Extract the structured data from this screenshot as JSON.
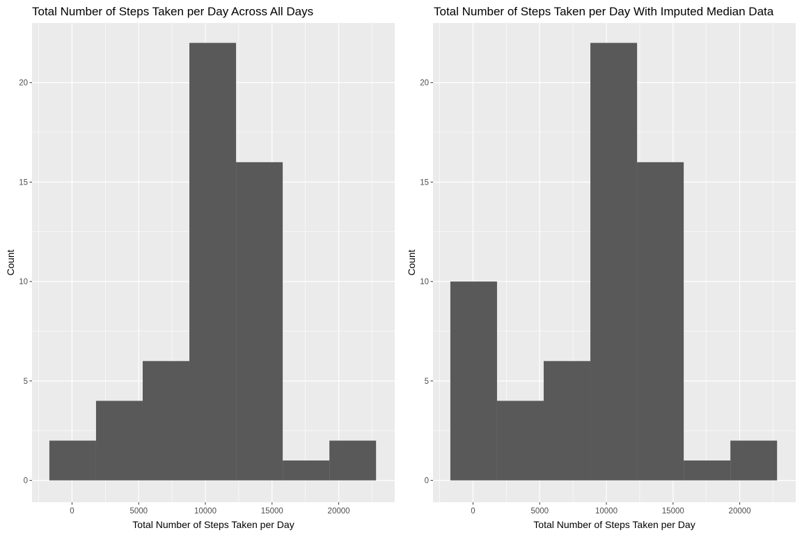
{
  "chart_data": [
    {
      "type": "bar",
      "title": "Total Number of Steps Taken per Day Across All Days",
      "xlabel": "Total Number of Steps Taken per Day",
      "ylabel": "Count",
      "xlim": [
        -3000,
        24200
      ],
      "ylim": [
        -1.1,
        23
      ],
      "x_ticks": [
        0,
        5000,
        10000,
        15000,
        20000
      ],
      "x_tick_labels": [
        "0",
        "5000",
        "10000",
        "15000",
        "20000"
      ],
      "y_ticks": [
        0,
        5,
        10,
        15,
        20
      ],
      "y_tick_labels": [
        "0",
        "5",
        "10",
        "15",
        "20"
      ],
      "bins": [
        {
          "x0": -1700,
          "x1": 1800,
          "count": 2
        },
        {
          "x0": 1800,
          "x1": 5300,
          "count": 4
        },
        {
          "x0": 5300,
          "x1": 8800,
          "count": 6
        },
        {
          "x0": 8800,
          "x1": 12300,
          "count": 22
        },
        {
          "x0": 12300,
          "x1": 15800,
          "count": 16
        },
        {
          "x0": 15800,
          "x1": 19300,
          "count": 1
        },
        {
          "x0": 19300,
          "x1": 22800,
          "count": 2
        }
      ],
      "grid": true,
      "bar_color": "#595959",
      "panel_color": "#ebebeb",
      "grid_color": "#ffffff"
    },
    {
      "type": "bar",
      "title": "Total Number of Steps Taken per Day With Imputed Median Data",
      "xlabel": "Total Number of Steps Taken per Day",
      "ylabel": "Count",
      "xlim": [
        -3000,
        24200
      ],
      "ylim": [
        -1.1,
        23
      ],
      "x_ticks": [
        0,
        5000,
        10000,
        15000,
        20000
      ],
      "x_tick_labels": [
        "0",
        "5000",
        "10000",
        "15000",
        "20000"
      ],
      "y_ticks": [
        0,
        5,
        10,
        15,
        20
      ],
      "y_tick_labels": [
        "0",
        "5",
        "10",
        "15",
        "20"
      ],
      "bins": [
        {
          "x0": -1700,
          "x1": 1800,
          "count": 10
        },
        {
          "x0": 1800,
          "x1": 5300,
          "count": 4
        },
        {
          "x0": 5300,
          "x1": 8800,
          "count": 6
        },
        {
          "x0": 8800,
          "x1": 12300,
          "count": 22
        },
        {
          "x0": 12300,
          "x1": 15800,
          "count": 16
        },
        {
          "x0": 15800,
          "x1": 19300,
          "count": 1
        },
        {
          "x0": 19300,
          "x1": 22800,
          "count": 2
        }
      ],
      "grid": true,
      "bar_color": "#595959",
      "panel_color": "#ebebeb",
      "grid_color": "#ffffff"
    }
  ]
}
